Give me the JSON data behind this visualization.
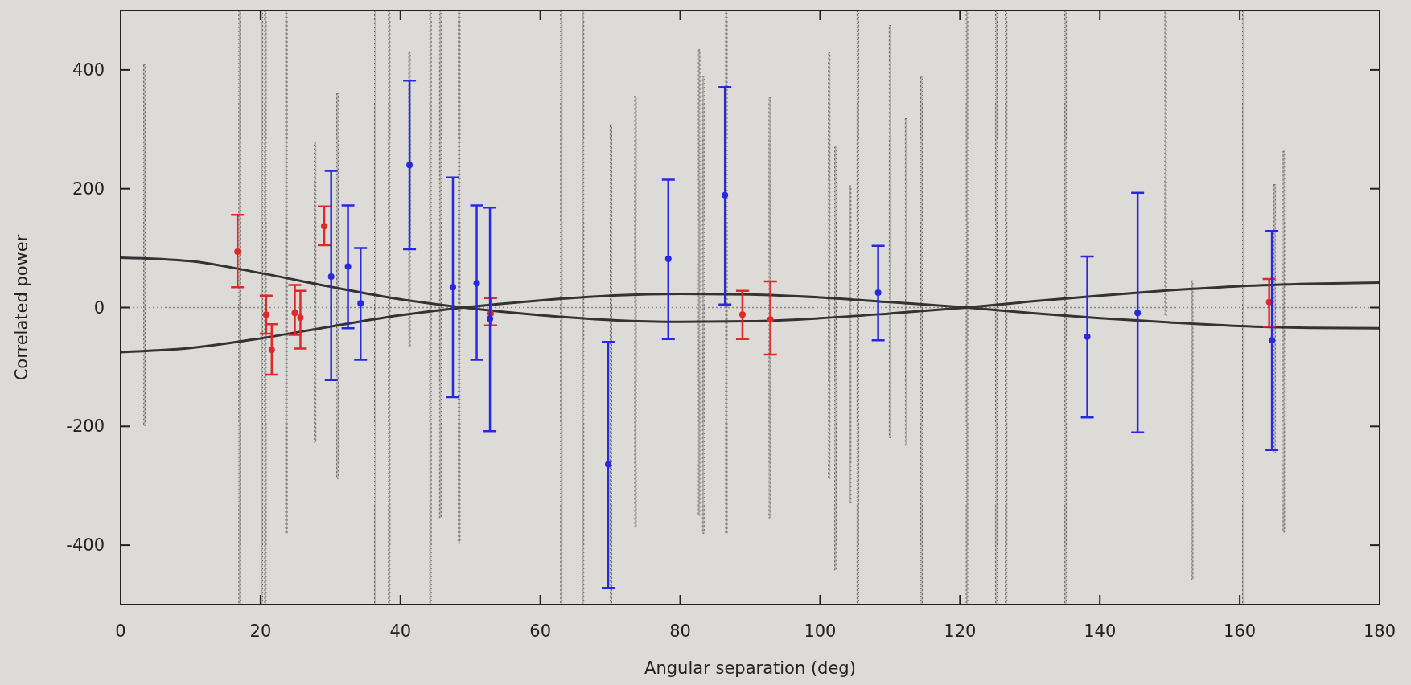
{
  "chart_data": {
    "type": "scatter",
    "xlabel": "Angular separation (deg)",
    "ylabel": "Correlated power",
    "xlim": [
      0,
      180
    ],
    "xticks": [
      0,
      20,
      40,
      60,
      80,
      100,
      120,
      140,
      160,
      180
    ],
    "ylim": [
      -500,
      500
    ],
    "yticks": [
      -400,
      -200,
      0,
      200,
      400
    ],
    "ref_lines": [
      {
        "axis": "y",
        "value": 0,
        "color": "#888888",
        "line_style": "dotted"
      }
    ],
    "series": [
      {
        "type": "bar",
        "color": "#666666",
        "line_style": "dotted",
        "x": [
          3.4,
          17.0,
          20.2,
          20.7,
          23.7,
          27.8,
          31.0,
          36.4,
          38.4,
          41.3,
          44.3,
          45.7,
          48.4,
          63.0,
          66.1,
          70.1,
          73.6,
          82.7,
          83.3,
          86.6,
          92.8,
          101.3,
          102.2,
          104.3,
          105.4,
          110.0,
          112.3,
          114.5,
          121.0,
          125.2,
          126.6,
          135.1,
          149.4,
          153.2,
          160.5,
          165.0,
          166.3
        ],
        "base": [
          -199,
          -500,
          -500,
          -500,
          -380,
          -227,
          -288,
          -500,
          -500,
          -67,
          -500,
          -354,
          -397,
          -500,
          -500,
          -500,
          -370,
          -350,
          -380,
          -380,
          -354,
          -288,
          -442,
          -330,
          -500,
          -219,
          -232,
          -500,
          -500,
          -500,
          -500,
          -500,
          -14,
          -458,
          -500,
          -245,
          -378
        ],
        "values": [
          608,
          1000,
          1000,
          1000,
          880,
          504,
          648,
          1000,
          1000,
          496,
          1000,
          854,
          897,
          1000,
          1000,
          808,
          726,
          784,
          769,
          880,
          707,
          717,
          712,
          535,
          1000,
          694,
          550,
          889,
          1000,
          1000,
          1000,
          1000,
          514,
          503,
          1000,
          452,
          641
        ]
      },
      {
        "type": "line",
        "color": "#333333",
        "x": [
          0,
          10,
          20,
          30,
          40,
          49,
          60,
          70,
          80,
          90,
          100,
          110,
          121,
          130,
          140,
          150,
          160,
          170,
          180
        ],
        "values": [
          84,
          78,
          58,
          35,
          14,
          0,
          -13,
          -21,
          -24,
          -23,
          -18,
          -10,
          0,
          10,
          20,
          29,
          36,
          40,
          42
        ]
      },
      {
        "type": "line",
        "color": "#333333",
        "x": [
          0,
          10,
          20,
          30,
          40,
          49,
          60,
          70,
          80,
          90,
          100,
          110,
          121,
          130,
          140,
          150,
          160,
          170,
          180
        ],
        "values": [
          -75,
          -68,
          -52,
          -32,
          -13,
          0,
          12,
          20,
          23,
          22,
          17,
          9,
          0,
          -9,
          -18,
          -25,
          -31,
          -34,
          -35
        ]
      },
      {
        "color": "#e02828",
        "marker": "circle",
        "x": [
          16.7,
          20.8,
          21.6,
          24.9,
          25.7,
          29.1,
          52.9,
          88.9,
          92.9,
          164.2
        ],
        "values": [
          94,
          -12,
          -71,
          -9,
          -17,
          137,
          -10,
          -12,
          -20,
          9
        ],
        "errors": [
          [
            34,
            156
          ],
          [
            -44,
            20
          ],
          [
            -113,
            -28
          ],
          [
            -46,
            38
          ],
          [
            -69,
            28
          ],
          [
            105,
            170
          ],
          [
            -30,
            16
          ],
          [
            -53,
            28
          ],
          [
            -79,
            44
          ],
          [
            -32,
            48
          ]
        ]
      },
      {
        "color": "#2828e0",
        "marker": "circle",
        "x": [
          30.1,
          32.5,
          34.3,
          41.3,
          47.5,
          50.9,
          52.8,
          69.7,
          78.3,
          86.4,
          108.3,
          138.2,
          145.4,
          164.6
        ],
        "values": [
          52,
          69,
          7,
          240,
          34,
          41,
          -19,
          -264,
          82,
          189,
          25,
          -49,
          -9,
          -55
        ],
        "errors": [
          [
            -122,
            230
          ],
          [
            -35,
            172
          ],
          [
            -88,
            100
          ],
          [
            98,
            382
          ],
          [
            -151,
            219
          ],
          [
            -88,
            172
          ],
          [
            -208,
            168
          ],
          [
            -472,
            -58
          ],
          [
            -53,
            215
          ],
          [
            5,
            371
          ],
          [
            -55,
            104
          ],
          [
            -185,
            86
          ],
          [
            -210,
            193
          ],
          [
            -240,
            129
          ]
        ]
      }
    ]
  }
}
